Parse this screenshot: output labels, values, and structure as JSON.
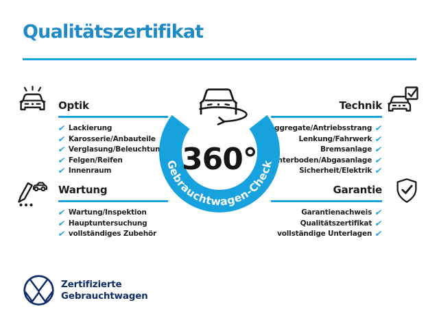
{
  "title": "Qualitätszertifikat",
  "check_glyph": "✔",
  "colors": {
    "title_blue": "#1f8ac4",
    "accent_blue": "#17a2dd",
    "ink": "#1b1b1b",
    "navy": "#0f2d66"
  },
  "center": {
    "degree_label": "360°",
    "ring_label": "Gebrauchtwagen-Check"
  },
  "sections": [
    {
      "id": "optik",
      "title": "Optik",
      "icon": "sparkling-car-icon",
      "items": [
        "Lackierung",
        "Karosserie/Anbauteile",
        "Verglasung/Beleuchtung",
        "Felgen/Reifen",
        "Innenraum"
      ]
    },
    {
      "id": "technik",
      "title": "Technik",
      "icon": "car-checkbox-icon",
      "items": [
        "Aggregate/Antriebsstrang",
        "Lenkung/Fahrwerk",
        "Bremsanlage",
        "Unterboden/Abgasanlage",
        "Sicherheit/Elektrik"
      ]
    },
    {
      "id": "wartung",
      "title": "Wartung",
      "icon": "pencil-car-icon",
      "items": [
        "Wartung/Inspektion",
        "Hauptuntersuchung",
        "vollständiges Zubehör"
      ]
    },
    {
      "id": "garantie",
      "title": "Garantie",
      "icon": "shield-check-icon",
      "items": [
        "Garantienachweis",
        "Qualitätszertifikat",
        "vollständige Unterlagen"
      ]
    }
  ],
  "footer": {
    "brand_line1": "Zertifizierte",
    "brand_line2": "Gebrauchtwagen"
  }
}
